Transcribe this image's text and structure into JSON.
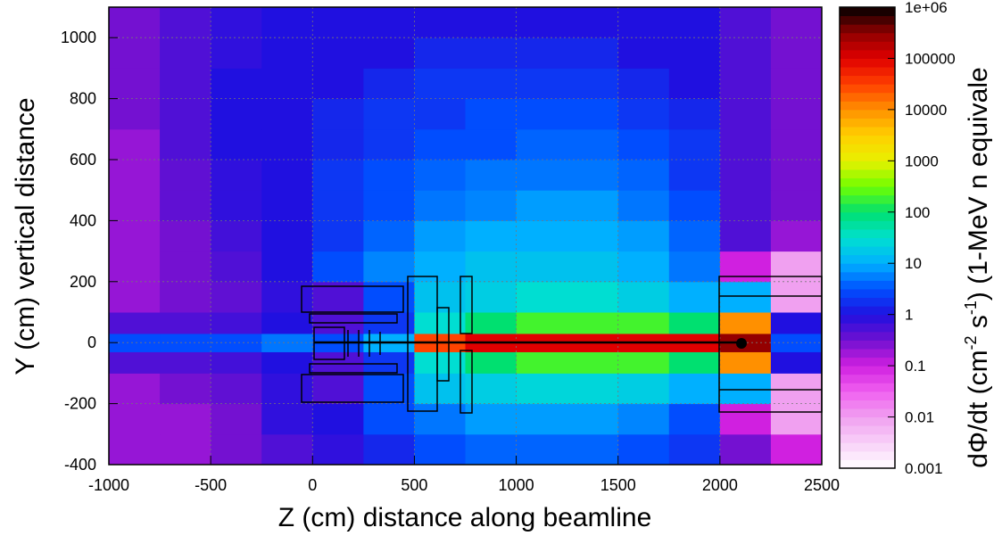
{
  "chart_data": {
    "type": "heatmap",
    "xlabel": "Z (cm) distance along beamline",
    "ylabel": "Y (cm) vertical distance",
    "zlabel": [
      "dΦ/dt (cm",
      "-2",
      " s",
      "-1",
      ") (1-MeV n equivale"
    ],
    "xlim": [
      -1000,
      2500
    ],
    "ylim": [
      -400,
      1100
    ],
    "xticks": [
      -1000,
      -500,
      0,
      500,
      1000,
      1500,
      2000,
      2500
    ],
    "yticks": [
      -400,
      -200,
      0,
      200,
      400,
      600,
      800,
      1000
    ],
    "zscale": "log",
    "zlim": [
      0.001,
      1000000
    ],
    "zticks": [
      {
        "value": 1000000,
        "label": "1e+06"
      },
      100000,
      10000,
      1000,
      100,
      10,
      1,
      0.1,
      0.01,
      0.001
    ],
    "grid": true,
    "colormap": [
      "#ffffff",
      "#f8d0f8",
      "#f0a0f0",
      "#f060f0",
      "#d020e0",
      "#7010d0",
      "#2010e0",
      "#0050ff",
      "#00b0ff",
      "#00e0d0",
      "#00e070",
      "#70ff00",
      "#e8f000",
      "#ffd000",
      "#ff9000",
      "#ff4000",
      "#e00000",
      "#900000",
      "#000000"
    ],
    "xbins": [
      -1000,
      -750,
      -500,
      -250,
      0,
      250,
      500,
      750,
      1000,
      1250,
      1500,
      1750,
      2000,
      2250,
      2500
    ],
    "ybins": [
      -400,
      -300,
      -200,
      -100,
      -30,
      30,
      100,
      200,
      300,
      400,
      500,
      600,
      700,
      800,
      900,
      1000,
      1100
    ],
    "z": [
      [
        0.2,
        0.2,
        0.3,
        0.5,
        0.8,
        1.5,
        3,
        4,
        4,
        4,
        3,
        2,
        0.3,
        0.1
      ],
      [
        0.2,
        0.2,
        0.3,
        0.8,
        1,
        3,
        5,
        8,
        8,
        8,
        6,
        3,
        0.1,
        0.01
      ],
      [
        0.2,
        0.3,
        0.4,
        0.8,
        0.5,
        3,
        15,
        20,
        25,
        25,
        20,
        10,
        10,
        0.01
      ],
      [
        0.5,
        0.5,
        0.6,
        1,
        0.5,
        2,
        30,
        100,
        200,
        200,
        200,
        100,
        10000,
        1
      ],
      [
        3,
        3,
        3,
        5,
        3,
        10,
        30000,
        100000,
        100000,
        100000,
        100000,
        100000,
        300000,
        3
      ],
      [
        0.5,
        0.5,
        0.6,
        1,
        0.5,
        2,
        30,
        100,
        200,
        200,
        200,
        100,
        10000,
        1
      ],
      [
        0.2,
        0.3,
        0.4,
        0.8,
        0.5,
        3,
        15,
        20,
        30,
        30,
        20,
        10,
        10,
        0.01
      ],
      [
        0.2,
        0.3,
        0.5,
        1,
        3,
        6,
        10,
        15,
        15,
        15,
        10,
        5,
        0.1,
        0.01
      ],
      [
        0.2,
        0.3,
        0.6,
        1,
        2,
        4,
        8,
        10,
        10,
        10,
        8,
        4,
        0.5,
        0.2
      ],
      [
        0.2,
        0.4,
        0.8,
        1,
        2,
        3,
        5,
        6,
        8,
        8,
        5,
        3,
        0.5,
        0.3
      ],
      [
        0.2,
        0.4,
        0.8,
        1,
        2,
        3,
        4,
        5,
        5,
        5,
        4,
        2,
        0.5,
        0.3
      ],
      [
        0.2,
        0.5,
        1,
        1,
        1.5,
        2,
        3,
        3,
        4,
        4,
        3,
        2,
        0.5,
        0.3
      ],
      [
        0.3,
        0.5,
        1,
        1,
        1.5,
        2,
        2,
        3,
        3,
        3,
        2,
        1.5,
        0.5,
        0.3
      ],
      [
        0.3,
        0.5,
        1,
        1,
        1,
        1.5,
        2,
        2,
        2,
        2,
        1.5,
        1,
        0.5,
        0.3
      ],
      [
        0.3,
        0.5,
        0.8,
        1,
        1,
        1,
        1.5,
        1.5,
        1.5,
        1.5,
        1,
        1,
        0.5,
        0.3
      ],
      [
        0.3,
        0.5,
        0.8,
        1,
        1,
        1,
        1,
        1,
        1,
        1,
        1,
        1,
        0.5,
        0.3
      ]
    ]
  }
}
